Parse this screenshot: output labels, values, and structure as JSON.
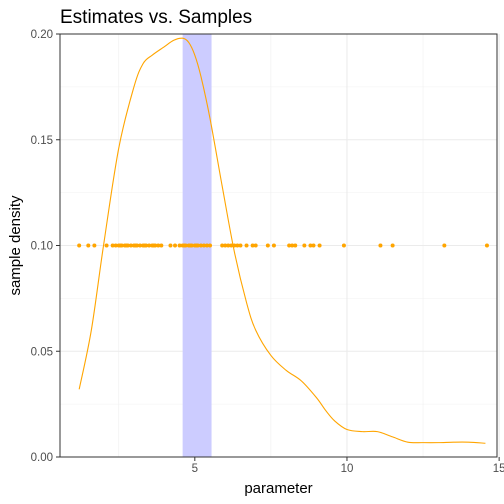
{
  "chart_data": {
    "type": "scatter",
    "title": "Estimates vs. Samples",
    "xlabel": "parameter",
    "ylabel": "sample density",
    "xlim": [
      0.57,
      14.93
    ],
    "ylim": [
      0,
      0.2
    ],
    "x_ticks": [
      5,
      10,
      15
    ],
    "x_tick_labels": [
      "5",
      "10",
      "15"
    ],
    "y_ticks": [
      0,
      0.05,
      0.1,
      0.15,
      0.2
    ],
    "y_tick_labels": [
      "0.00",
      "0.05",
      "0.10",
      "0.15",
      "0.20"
    ],
    "grid": true,
    "shaded_interval": {
      "x": [
        4.6,
        5.55
      ],
      "color": "#ccccff"
    },
    "density_curve": {
      "color": "#ffa500",
      "x": [
        1.2,
        1.6,
        2.0,
        2.5,
        3.0,
        3.3,
        3.6,
        4.0,
        4.3,
        4.6,
        4.8,
        5.0,
        5.2,
        5.5,
        5.9,
        6.3,
        6.7,
        7.0,
        7.5,
        8.0,
        8.5,
        9.0,
        9.3,
        9.6,
        10.0,
        10.5,
        11.0,
        11.5,
        12.0,
        12.5,
        13.0,
        13.5,
        14.0,
        14.55
      ],
      "y": [
        0.032,
        0.06,
        0.1,
        0.146,
        0.175,
        0.186,
        0.19,
        0.194,
        0.197,
        0.198,
        0.196,
        0.19,
        0.18,
        0.16,
        0.128,
        0.097,
        0.073,
        0.06,
        0.048,
        0.041,
        0.036,
        0.028,
        0.022,
        0.017,
        0.013,
        0.012,
        0.012,
        0.0095,
        0.007,
        0.0068,
        0.0068,
        0.007,
        0.007,
        0.0065
      ]
    },
    "samples": {
      "color": "#ffa500",
      "y": 0.1,
      "x": [
        1.2,
        1.5,
        1.7,
        2.1,
        2.3,
        2.4,
        2.5,
        2.55,
        2.6,
        2.7,
        2.75,
        2.8,
        2.9,
        3.0,
        3.05,
        3.1,
        3.2,
        3.3,
        3.35,
        3.4,
        3.5,
        3.6,
        3.65,
        3.7,
        3.8,
        3.9,
        4.2,
        4.35,
        4.5,
        4.6,
        4.65,
        4.7,
        4.8,
        4.85,
        4.9,
        5.0,
        5.05,
        5.1,
        5.2,
        5.3,
        5.4,
        5.5,
        5.9,
        6.0,
        6.1,
        6.2,
        6.3,
        6.4,
        6.5,
        6.7,
        6.9,
        7.0,
        7.4,
        7.6,
        8.1,
        8.2,
        8.3,
        8.6,
        8.8,
        8.9,
        9.1,
        9.9,
        11.1,
        11.5,
        13.2,
        14.6
      ]
    }
  }
}
